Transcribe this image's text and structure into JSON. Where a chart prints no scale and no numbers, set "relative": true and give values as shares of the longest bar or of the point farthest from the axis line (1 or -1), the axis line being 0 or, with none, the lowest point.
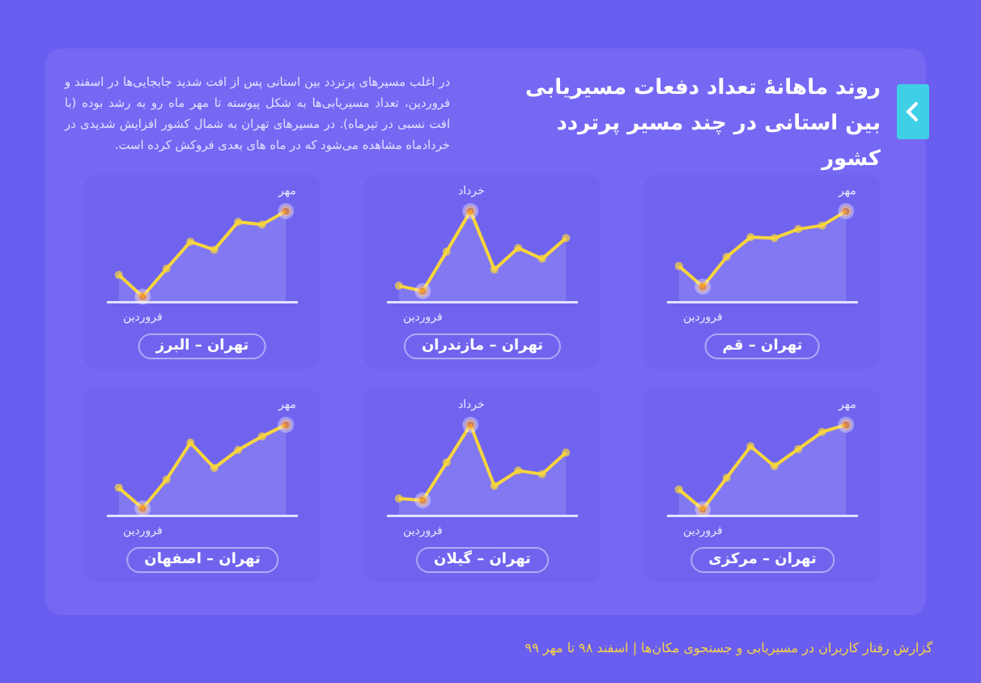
{
  "chart_data": [
    {
      "type": "other",
      "title": "روند ماهانهٔ تعداد دفعات مسیریابی بین استانی در چند مسیر پرتردد کشور",
      "subtitle": "در اغلب مسیرهای پرتردد بین استانی پس از افت شدید جابجایی‌ها در اسفند و فروردین، تعداد مسیریابی‌ها به شکل پیوسته تا مهر ماه رو به رشد بوده (با افت نسبی در تیرماه). در مسیرهای تهران به شمال کشور افزایش شدیدی در خردادماه مشاهده می‌شود که در ماه های بعدی فروکش کرده است.",
      "annotations": [
        "گزارش رفتار کاربران در مسیریابی و جستجوی مکان‌ها | اسفند ۹۸ تا مهر ۹۹"
      ]
    },
    {
      "type": "area",
      "title": "تهران – البرز",
      "relative": true,
      "marker": "circle",
      "categories": [
        null,
        "فروردین",
        null,
        null,
        null,
        null,
        null,
        "مهر"
      ],
      "color": "#f7d53c",
      "colors": [
        "#f7d53c",
        "#f08a24",
        "#f7d53c",
        "#f7d53c",
        "#f7d53c",
        "#f7d53c",
        "#f7d53c",
        "#f08a24"
      ],
      "values": [
        0.29,
        0.05,
        0.36,
        0.66,
        0.57,
        0.88,
        0.85,
        1
      ]
    },
    {
      "type": "area",
      "title": "تهران – مازندران",
      "relative": true,
      "marker": "circle",
      "categories": [
        null,
        "فروردین",
        null,
        "خرداد",
        null,
        null,
        null,
        null
      ],
      "color": "#f7d53c",
      "colors": [
        "#f7d53c",
        "#f08a24",
        "#f7d53c",
        "#f08a24",
        "#f7d53c",
        "#f7d53c",
        "#f7d53c",
        "#f7d53c"
      ],
      "values": [
        0.17,
        0.11,
        0.55,
        1,
        0.35,
        0.59,
        0.47,
        0.7
      ]
    },
    {
      "type": "area",
      "title": "تهران – قم",
      "relative": true,
      "marker": "circle",
      "categories": [
        null,
        "فروردین",
        null,
        null,
        null,
        null,
        null,
        "مهر"
      ],
      "color": "#f7d53c",
      "colors": [
        "#f7d53c",
        "#f08a24",
        "#f7d53c",
        "#f7d53c",
        "#f7d53c",
        "#f7d53c",
        "#f7d53c",
        "#f08a24"
      ],
      "values": [
        0.39,
        0.16,
        0.49,
        0.71,
        0.7,
        0.8,
        0.84,
        1
      ]
    },
    {
      "type": "area",
      "title": "تهران – اصفهان",
      "relative": true,
      "marker": "circle",
      "categories": [
        null,
        "فروردین",
        null,
        null,
        null,
        null,
        null,
        "مهر"
      ],
      "color": "#f7d53c",
      "colors": [
        "#f7d53c",
        "#f08a24",
        "#f7d53c",
        "#f7d53c",
        "#f7d53c",
        "#f7d53c",
        "#f7d53c",
        "#f08a24"
      ],
      "values": [
        0.3,
        0.07,
        0.39,
        0.8,
        0.52,
        0.72,
        0.87,
        1
      ]
    },
    {
      "type": "area",
      "title": "تهران – گیلان",
      "relative": true,
      "marker": "circle",
      "categories": [
        null,
        "فروردین",
        null,
        "خرداد",
        null,
        null,
        null,
        null
      ],
      "color": "#f7d53c",
      "colors": [
        "#f7d53c",
        "#f08a24",
        "#f7d53c",
        "#f08a24",
        "#f7d53c",
        "#f7d53c",
        "#f7d53c",
        "#f7d53c"
      ],
      "values": [
        0.18,
        0.16,
        0.58,
        1,
        0.32,
        0.49,
        0.45,
        0.69
      ]
    },
    {
      "type": "area",
      "title": "تهران – مرکزی",
      "relative": true,
      "marker": "circle",
      "categories": [
        null,
        "فروردین",
        null,
        null,
        null,
        null,
        null,
        "مهر"
      ],
      "color": "#f7d53c",
      "colors": [
        "#f7d53c",
        "#f08a24",
        "#f7d53c",
        "#f7d53c",
        "#f7d53c",
        "#f7d53c",
        "#f7d53c",
        "#f08a24"
      ],
      "values": [
        0.28,
        0.06,
        0.41,
        0.76,
        0.54,
        0.73,
        0.92,
        1
      ]
    }
  ]
}
